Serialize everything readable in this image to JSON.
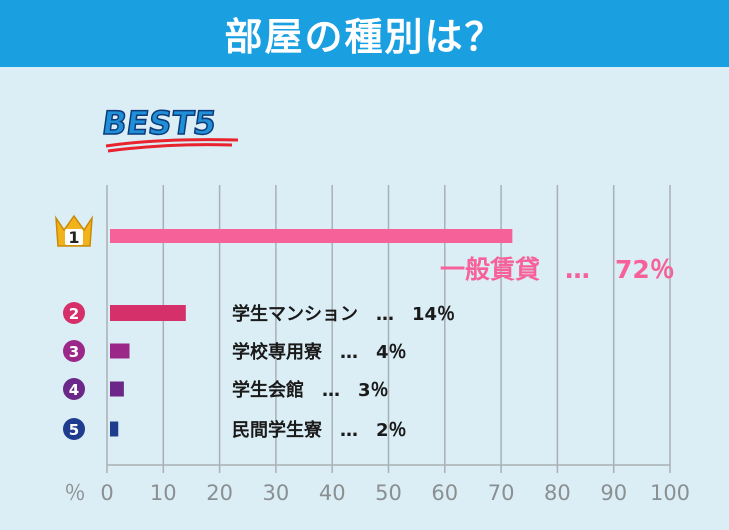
{
  "header": {
    "title": "部屋の種別は？"
  },
  "badge": {
    "text": "BEST5"
  },
  "chart_data": {
    "type": "bar",
    "orientation": "horizontal",
    "categories": [
      "一般賃貸",
      "学生マンション",
      "学校専用寮",
      "学生会館",
      "民間学生寮"
    ],
    "values": [
      72,
      14,
      4,
      3,
      2
    ],
    "ranks": [
      "1",
      "2",
      "3",
      "4",
      "5"
    ],
    "data_labels": [
      "一般賃貸　…　72％",
      "学生マンション　…　14％",
      "学校専用寮　…　4％",
      "学生会館　…　3％",
      "民間学生寮　…　2％"
    ],
    "bar_colors": [
      "#f7619a",
      "#d6306a",
      "#9b2889",
      "#6b2888",
      "#1f3d8f"
    ],
    "rank_colors": [
      "#f1b21c",
      "#d6306a",
      "#9b2889",
      "#6b2888",
      "#1f3d8f"
    ],
    "x_unit_label": "％",
    "xlim": [
      0,
      100
    ],
    "x_ticks": [
      "0",
      "10",
      "20",
      "30",
      "40",
      "50",
      "60",
      "70",
      "80",
      "90",
      "100"
    ],
    "grid": true
  }
}
